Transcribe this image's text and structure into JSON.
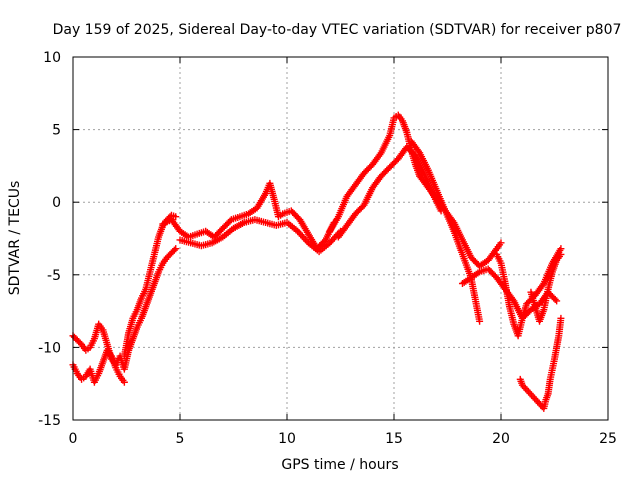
{
  "chart_data": {
    "type": "scatter",
    "title": "Day 159 of 2025, Sidereal Day-to-day VTEC variation (SDTVAR) for receiver p807",
    "xlabel": "GPS time / hours",
    "ylabel": "SDTVAR / TECUs",
    "xlim": [
      0,
      25
    ],
    "ylim": [
      -15,
      10
    ],
    "xticks": [
      "0",
      "5",
      "10",
      "15",
      "20",
      "25"
    ],
    "yticks": [
      "-15",
      "-10",
      "-5",
      "0",
      "5",
      "10"
    ],
    "grid": true,
    "marker": "plus",
    "color": "#ff0000",
    "series": [
      {
        "x": [
          0.0,
          0.2,
          0.4,
          0.6,
          0.8,
          1.0,
          1.2,
          1.4,
          1.6,
          1.8,
          2.0,
          2.2,
          2.4,
          2.6
        ],
        "y": [
          -9.2,
          -9.5,
          -9.8,
          -10.2,
          -10.0,
          -9.4,
          -8.4,
          -8.8,
          -9.8,
          -10.8,
          -11.2,
          -10.6,
          -11.5,
          -10.2
        ]
      },
      {
        "x": [
          0.0,
          0.2,
          0.4,
          0.6,
          0.8,
          1.0,
          1.2,
          1.4,
          1.6,
          1.8,
          2.0,
          2.2,
          2.4
        ],
        "y": [
          -11.2,
          -11.8,
          -12.2,
          -12.0,
          -11.5,
          -12.4,
          -11.8,
          -11.0,
          -10.2,
          -10.6,
          -11.4,
          -12.0,
          -12.4
        ]
      },
      {
        "x": [
          2.4,
          2.6,
          2.8,
          3.0,
          3.2,
          3.4,
          3.6,
          3.8,
          4.0,
          4.2,
          4.4,
          4.6,
          4.8
        ],
        "y": [
          -10.6,
          -9.0,
          -8.0,
          -7.4,
          -6.6,
          -6.0,
          -4.8,
          -3.6,
          -2.4,
          -1.6,
          -1.2,
          -0.9,
          -1.0
        ]
      },
      {
        "x": [
          2.6,
          2.8,
          3.0,
          3.2,
          3.4,
          3.6,
          3.8,
          4.0,
          4.2,
          4.4,
          4.6,
          4.8
        ],
        "y": [
          -10.2,
          -9.4,
          -8.6,
          -8.0,
          -7.2,
          -6.4,
          -5.6,
          -4.8,
          -4.2,
          -3.8,
          -3.5,
          -3.2
        ]
      },
      {
        "x": [
          4.2,
          4.6,
          5.0,
          5.4,
          5.8,
          6.2,
          6.6,
          7.0,
          7.4,
          7.8,
          8.2,
          8.6,
          9.0,
          9.2,
          9.4,
          9.6,
          9.8,
          10.2,
          10.6,
          11.0,
          11.4,
          11.8,
          12.2
        ],
        "y": [
          -1.5,
          -1.2,
          -2.0,
          -2.4,
          -2.2,
          -2.0,
          -2.4,
          -1.8,
          -1.2,
          -1.0,
          -0.8,
          -0.4,
          0.6,
          1.3,
          0.2,
          -1.0,
          -0.8,
          -0.6,
          -1.2,
          -2.2,
          -3.2,
          -2.6,
          -1.4
        ]
      },
      {
        "x": [
          5.0,
          5.5,
          6.0,
          6.5,
          7.0,
          7.5,
          8.0,
          8.5,
          9.0,
          9.5,
          10.0,
          10.5,
          11.0,
          11.5,
          12.0,
          12.5
        ],
        "y": [
          -2.6,
          -2.8,
          -3.0,
          -2.8,
          -2.4,
          -1.8,
          -1.4,
          -1.2,
          -1.4,
          -1.6,
          -1.4,
          -2.0,
          -2.8,
          -3.4,
          -2.8,
          -2.0
        ]
      },
      {
        "x": [
          12.0,
          12.4,
          12.8,
          13.2,
          13.6,
          14.0,
          14.4,
          14.8,
          15.0,
          15.2,
          15.4,
          15.6,
          15.8,
          16.0,
          16.2
        ],
        "y": [
          -2.0,
          -1.0,
          0.4,
          1.2,
          2.0,
          2.6,
          3.4,
          4.6,
          5.8,
          6.0,
          5.6,
          4.8,
          3.6,
          2.6,
          1.8
        ]
      },
      {
        "x": [
          12.4,
          12.8,
          13.2,
          13.6,
          14.0,
          14.4,
          14.8,
          15.2,
          15.6,
          16.0,
          16.4,
          16.8,
          17.2
        ],
        "y": [
          -2.4,
          -1.6,
          -0.8,
          -0.2,
          1.0,
          1.8,
          2.4,
          3.0,
          3.8,
          3.2,
          2.0,
          0.6,
          -0.6
        ]
      },
      {
        "x": [
          15.8,
          16.2,
          16.6,
          17.0,
          17.4,
          17.8,
          18.2,
          18.6,
          19.0
        ],
        "y": [
          4.2,
          3.4,
          2.2,
          0.8,
          -0.6,
          -2.0,
          -3.6,
          -5.2,
          -8.2
        ]
      },
      {
        "x": [
          16.2,
          16.6,
          17.0,
          17.4,
          17.8,
          18.2,
          18.6,
          19.0,
          19.4,
          19.8,
          20.0
        ],
        "y": [
          1.8,
          1.0,
          0.2,
          -0.6,
          -1.4,
          -2.6,
          -3.8,
          -4.4,
          -4.0,
          -3.2,
          -2.8
        ]
      },
      {
        "x": [
          18.2,
          18.6,
          19.0,
          19.4,
          19.8,
          20.2,
          20.6,
          21.0,
          21.4,
          21.8,
          22.2,
          22.6
        ],
        "y": [
          -5.6,
          -5.2,
          -4.8,
          -4.6,
          -5.2,
          -6.0,
          -6.8,
          -8.0,
          -7.4,
          -7.0,
          -6.2,
          -6.8
        ]
      },
      {
        "x": [
          19.8,
          20.0,
          20.2,
          20.4,
          20.6,
          20.8,
          21.0,
          21.2,
          21.6,
          22.0,
          22.4,
          22.8
        ],
        "y": [
          -3.6,
          -4.2,
          -5.6,
          -7.2,
          -8.4,
          -9.2,
          -8.0,
          -7.0,
          -6.4,
          -5.6,
          -4.2,
          -3.2
        ]
      },
      {
        "x": [
          21.4,
          21.6,
          21.8,
          22.0,
          22.2,
          22.4,
          22.6,
          22.8
        ],
        "y": [
          -6.2,
          -7.2,
          -8.2,
          -7.4,
          -6.0,
          -4.8,
          -4.0,
          -3.6
        ]
      },
      {
        "x": [
          20.9,
          21.0,
          22.0,
          22.1,
          22.2,
          22.3,
          22.5,
          22.7,
          22.8
        ],
        "y": [
          -12.2,
          -12.6,
          -14.2,
          -13.6,
          -13.2,
          -12.2,
          -10.8,
          -9.2,
          -8.0
        ]
      }
    ]
  }
}
